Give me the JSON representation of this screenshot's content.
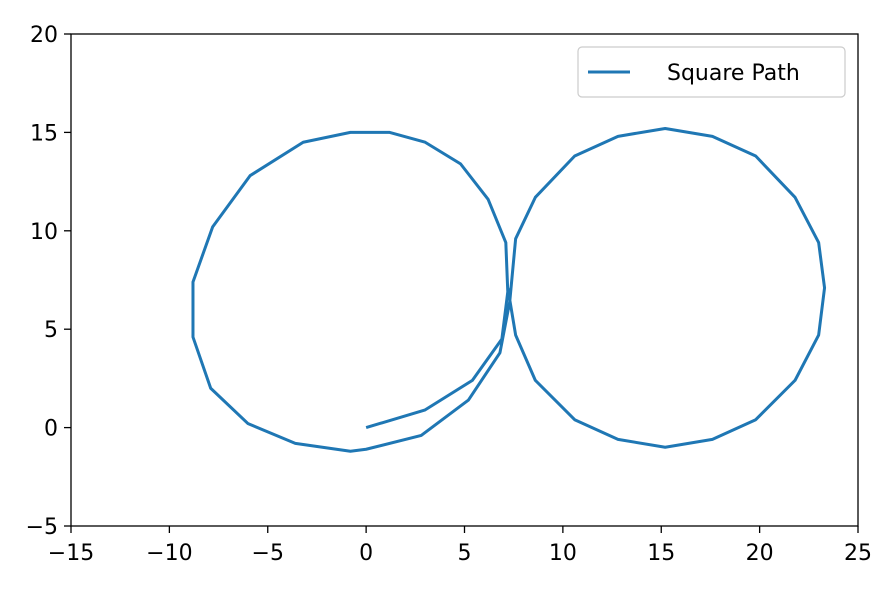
{
  "chart_data": {
    "type": "line",
    "title": "",
    "xlabel": "",
    "ylabel": "",
    "xlim": [
      -15,
      25
    ],
    "ylim": [
      -5,
      20
    ],
    "xticks": [
      -15,
      -10,
      -5,
      0,
      5,
      10,
      15,
      20,
      25
    ],
    "yticks": [
      -5,
      0,
      5,
      10,
      15,
      20
    ],
    "xtick_labels": [
      "−15",
      "−10",
      "−5",
      "0",
      "5",
      "10",
      "15",
      "20",
      "25"
    ],
    "ytick_labels": [
      "−5",
      "0",
      "5",
      "10",
      "15",
      "20"
    ],
    "grid": false,
    "legend_position": "top-right",
    "series": [
      {
        "name": "Square Path",
        "color": "#1f77b4",
        "x": [
          0,
          3.0,
          5.4,
          6.9,
          7.2,
          7.1,
          6.2,
          4.8,
          3.0,
          1.2,
          -0.8,
          -3.2,
          -5.9,
          -7.8,
          -8.8,
          -8.8,
          -7.9,
          -6.0,
          -3.6,
          -0.8,
          0.0,
          2.8,
          5.2,
          6.8,
          7.3,
          7.6,
          8.6,
          10.6,
          12.8,
          15.2,
          17.6,
          19.8,
          21.8,
          23.0,
          23.3,
          23.0,
          21.8,
          19.8,
          17.6,
          15.2,
          12.8,
          10.6,
          8.6,
          7.6,
          7.2
        ],
        "y": [
          0,
          0.9,
          2.4,
          4.5,
          6.9,
          9.4,
          11.6,
          13.4,
          14.5,
          15.0,
          15.0,
          14.5,
          12.8,
          10.2,
          7.4,
          4.6,
          2.0,
          0.2,
          -0.8,
          -1.2,
          -1.1,
          -0.4,
          1.4,
          3.8,
          6.4,
          9.6,
          11.7,
          13.8,
          14.8,
          15.2,
          14.8,
          13.8,
          11.7,
          9.4,
          7.1,
          4.7,
          2.4,
          0.4,
          -0.6,
          -1.0,
          -0.6,
          0.4,
          2.4,
          4.7,
          7.1
        ]
      }
    ]
  }
}
